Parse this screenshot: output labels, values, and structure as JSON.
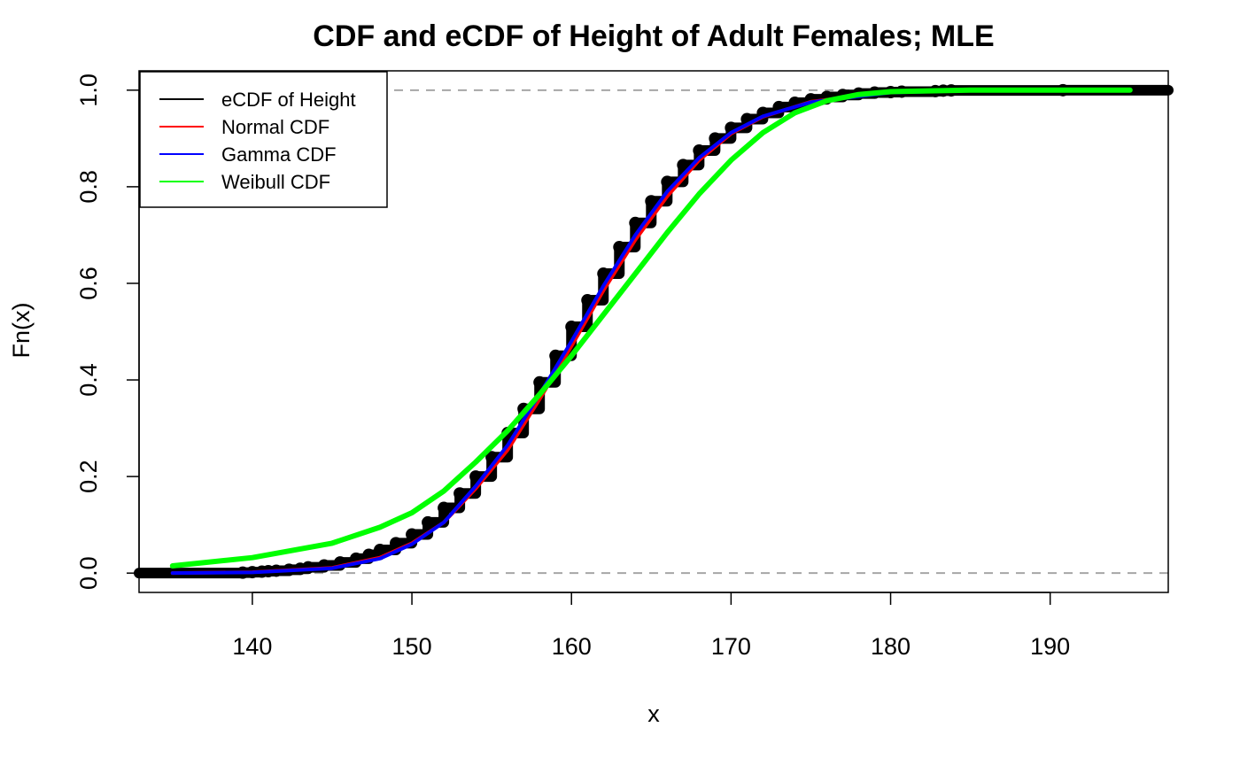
{
  "chart_data": {
    "type": "line",
    "title": "CDF and eCDF of Height of Adult Females; MLE",
    "xlabel": "x",
    "ylabel": "Fn(x)",
    "xlim": [
      132.9,
      197.4
    ],
    "ylim": [
      -0.04,
      1.04
    ],
    "x_ticks": [
      140,
      150,
      160,
      170,
      180,
      190
    ],
    "x_tick_labels": [
      "140",
      "150",
      "160",
      "170",
      "180",
      "190"
    ],
    "y_ticks": [
      0,
      0.2,
      0.4,
      0.6,
      0.8,
      1
    ],
    "y_tick_labels": [
      "0.0",
      "0.2",
      "0.4",
      "0.6",
      "0.8",
      "1.0"
    ],
    "reference_lines": [
      0,
      1
    ],
    "legend": {
      "position": "top-left",
      "entries": [
        {
          "label": "eCDF of Height",
          "color": "#000000"
        },
        {
          "label": "Normal CDF",
          "color": "#ff0000"
        },
        {
          "label": "Gamma CDF",
          "color": "#0000ff"
        },
        {
          "label": "Weibull CDF",
          "color": "#00ff00"
        }
      ]
    },
    "series": [
      {
        "name": "eCDF of Height",
        "color": "#000000",
        "style": "step-points",
        "x": [
          139.4,
          140.0,
          140.6,
          141.0,
          141.5,
          142.3,
          143.0,
          143.5,
          144.5,
          145.5,
          146.5,
          147.3,
          148.0,
          149.0,
          150.0,
          151.0,
          152.0,
          153.0,
          154.0,
          155.0,
          156.0,
          157.0,
          158.0,
          159.0,
          160.0,
          161.0,
          162.0,
          163.0,
          164.0,
          165.0,
          166.0,
          167.0,
          168.0,
          169.0,
          170.0,
          171.0,
          172.0,
          173.0,
          174.0,
          175.0,
          176.0,
          177.0,
          178.0,
          179.0,
          180.0,
          180.7,
          182.8,
          183.3,
          183.8,
          190.8
        ],
        "y": [
          0.001,
          0.002,
          0.003,
          0.004,
          0.005,
          0.007,
          0.009,
          0.012,
          0.016,
          0.022,
          0.03,
          0.038,
          0.048,
          0.062,
          0.08,
          0.105,
          0.135,
          0.165,
          0.2,
          0.24,
          0.29,
          0.34,
          0.395,
          0.45,
          0.51,
          0.565,
          0.62,
          0.675,
          0.725,
          0.77,
          0.81,
          0.845,
          0.875,
          0.9,
          0.922,
          0.94,
          0.953,
          0.965,
          0.974,
          0.981,
          0.986,
          0.99,
          0.993,
          0.995,
          0.996,
          0.997,
          0.998,
          0.999,
          0.9995,
          1.0
        ]
      },
      {
        "name": "Normal CDF",
        "color": "#ff0000",
        "style": "line",
        "x": [
          135,
          140,
          145,
          148,
          150,
          152,
          154,
          156,
          158,
          160,
          162,
          164,
          166,
          168,
          170,
          172,
          175,
          180,
          185,
          190,
          195
        ],
        "y": [
          0.0002,
          0.002,
          0.011,
          0.032,
          0.062,
          0.105,
          0.175,
          0.255,
          0.36,
          0.47,
          0.585,
          0.69,
          0.78,
          0.855,
          0.91,
          0.945,
          0.976,
          0.996,
          0.9995,
          1.0,
          1.0
        ]
      },
      {
        "name": "Gamma CDF",
        "color": "#0000ff",
        "style": "line",
        "x": [
          135,
          140,
          145,
          148,
          150,
          152,
          154,
          156,
          158,
          160,
          162,
          164,
          166,
          168,
          170,
          172,
          175,
          180,
          185,
          190,
          195
        ],
        "y": [
          0.0001,
          0.0015,
          0.01,
          0.03,
          0.06,
          0.105,
          0.18,
          0.265,
          0.37,
          0.48,
          0.595,
          0.7,
          0.79,
          0.86,
          0.912,
          0.946,
          0.975,
          0.995,
          0.9993,
          1.0,
          1.0
        ]
      },
      {
        "name": "Weibull CDF",
        "color": "#00ff00",
        "style": "line",
        "x": [
          135,
          140,
          145,
          148,
          150,
          152,
          154,
          156,
          158,
          160,
          162,
          164,
          166,
          168,
          170,
          172,
          174,
          176,
          178,
          180,
          185,
          190,
          195
        ],
        "y": [
          0.015,
          0.032,
          0.062,
          0.095,
          0.125,
          0.17,
          0.23,
          0.295,
          0.37,
          0.45,
          0.535,
          0.62,
          0.705,
          0.785,
          0.855,
          0.912,
          0.953,
          0.978,
          0.991,
          0.997,
          1.0,
          1.0,
          1.0
        ]
      }
    ]
  }
}
